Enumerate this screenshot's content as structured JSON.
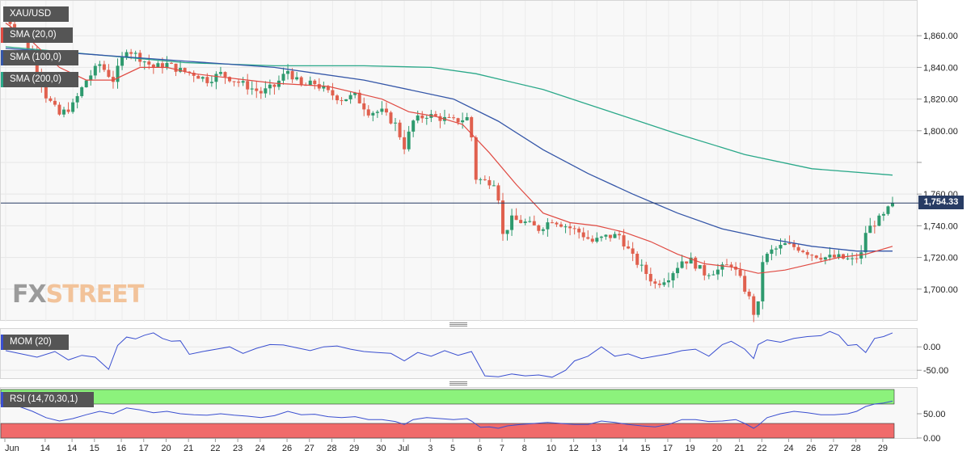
{
  "legends": {
    "symbol": "XAU/USD",
    "sma20": "SMA (20,0)",
    "sma100": "SMA (100,0)",
    "sma200": "SMA (200,0)",
    "mom": "MOM (20)",
    "rsi": "RSI (14,70,30,1)"
  },
  "brand": {
    "fx": "FX",
    "street": "STREET"
  },
  "last_price_label": "1,754.33",
  "colors": {
    "up": "#2e9a6e",
    "down": "#e0604e",
    "sma20": "#e04a42",
    "sma100": "#3456a8",
    "sma200": "#2aa889",
    "mom": "#3a4fd0",
    "rsi": "#3a4fd0",
    "overbought": "#8cf27c",
    "oversold": "#f06a6a"
  },
  "chart_data": [
    {
      "id": "price",
      "type": "candlestick",
      "title": "XAU/USD",
      "ylim": [
        1681,
        1880
      ],
      "yticks": [
        1700,
        1720,
        1740,
        1760,
        1780,
        1800,
        1820,
        1840,
        1860
      ],
      "ytick_labels": [
        "1,700.00",
        "1,720.00",
        "1,740.00",
        "1,760.00",
        "",
        "1,800.00",
        "1,820.00",
        "1,840.00",
        "1,860.00"
      ],
      "last_price": 1754.33,
      "x_index_range": [
        0,
        220
      ],
      "x_ticks": [
        {
          "i": 0,
          "label": "Jun"
        },
        {
          "i": 9,
          "label": "14"
        },
        {
          "i": 15,
          "label": "14"
        },
        {
          "i": 20,
          "label": "15"
        },
        {
          "i": 26,
          "label": "16"
        },
        {
          "i": 31,
          "label": "17"
        },
        {
          "i": 36,
          "label": "20"
        },
        {
          "i": 41,
          "label": "21"
        },
        {
          "i": 47,
          "label": "22"
        },
        {
          "i": 52,
          "label": "23"
        },
        {
          "i": 57,
          "label": "24"
        },
        {
          "i": 63,
          "label": "26"
        },
        {
          "i": 68,
          "label": "27"
        },
        {
          "i": 73,
          "label": "28"
        },
        {
          "i": 78,
          "label": "29"
        },
        {
          "i": 84,
          "label": "30"
        },
        {
          "i": 89,
          "label": "Jul"
        },
        {
          "i": 95,
          "label": "3"
        },
        {
          "i": 100,
          "label": "5"
        },
        {
          "i": 106,
          "label": "6"
        },
        {
          "i": 111,
          "label": "7"
        },
        {
          "i": 116,
          "label": "8"
        },
        {
          "i": 122,
          "label": "10"
        },
        {
          "i": 127,
          "label": "12"
        },
        {
          "i": 132,
          "label": "13"
        },
        {
          "i": 138,
          "label": "14"
        },
        {
          "i": 143,
          "label": "15"
        },
        {
          "i": 148,
          "label": "17"
        },
        {
          "i": 153,
          "label": "19"
        },
        {
          "i": 159,
          "label": "20"
        },
        {
          "i": 164,
          "label": "21"
        },
        {
          "i": 169,
          "label": "22"
        },
        {
          "i": 175,
          "label": "24"
        },
        {
          "i": 180,
          "label": "26"
        },
        {
          "i": 185,
          "label": "27"
        },
        {
          "i": 190,
          "label": "28"
        },
        {
          "i": 196,
          "label": "29"
        }
      ],
      "close_path": [
        [
          0,
          1872
        ],
        [
          3,
          1862
        ],
        [
          6,
          1848
        ],
        [
          9,
          1822
        ],
        [
          12,
          1810
        ],
        [
          15,
          1816
        ],
        [
          18,
          1832
        ],
        [
          21,
          1842
        ],
        [
          24,
          1832
        ],
        [
          27,
          1852
        ],
        [
          30,
          1846
        ],
        [
          33,
          1840
        ],
        [
          36,
          1842
        ],
        [
          39,
          1838
        ],
        [
          42,
          1836
        ],
        [
          45,
          1832
        ],
        [
          48,
          1836
        ],
        [
          51,
          1832
        ],
        [
          54,
          1828
        ],
        [
          57,
          1824
        ],
        [
          60,
          1828
        ],
        [
          63,
          1838
        ],
        [
          66,
          1828
        ],
        [
          69,
          1830
        ],
        [
          72,
          1824
        ],
        [
          75,
          1820
        ],
        [
          78,
          1822
        ],
        [
          81,
          1812
        ],
        [
          84,
          1812
        ],
        [
          87,
          1804
        ],
        [
          89,
          1790
        ],
        [
          91,
          1806
        ],
        [
          94,
          1810
        ],
        [
          97,
          1808
        ],
        [
          100,
          1806
        ],
        [
          103,
          1808
        ],
        [
          104,
          1796
        ],
        [
          105,
          1770
        ],
        [
          107,
          1768
        ],
        [
          109,
          1768
        ],
        [
          110,
          1758
        ],
        [
          111,
          1734
        ],
        [
          113,
          1744
        ],
        [
          116,
          1742
        ],
        [
          119,
          1738
        ],
        [
          122,
          1744
        ],
        [
          125,
          1740
        ],
        [
          128,
          1736
        ],
        [
          131,
          1730
        ],
        [
          134,
          1733
        ],
        [
          137,
          1734
        ],
        [
          140,
          1720
        ],
        [
          143,
          1710
        ],
        [
          145,
          1703
        ],
        [
          148,
          1708
        ],
        [
          151,
          1718
        ],
        [
          153,
          1718
        ],
        [
          156,
          1710
        ],
        [
          159,
          1712
        ],
        [
          162,
          1716
        ],
        [
          164,
          1706
        ],
        [
          166,
          1694
        ],
        [
          167,
          1685
        ],
        [
          168,
          1690
        ],
        [
          169,
          1718
        ],
        [
          171,
          1724
        ],
        [
          174,
          1728
        ],
        [
          177,
          1726
        ],
        [
          180,
          1722
        ],
        [
          183,
          1720
        ],
        [
          186,
          1720
        ],
        [
          189,
          1718
        ],
        [
          191,
          1722
        ],
        [
          192,
          1736
        ],
        [
          194,
          1742
        ],
        [
          196,
          1746
        ],
        [
          198,
          1754.33
        ]
      ],
      "sma20_path": [
        [
          0,
          1868
        ],
        [
          6,
          1856
        ],
        [
          12,
          1840
        ],
        [
          18,
          1832
        ],
        [
          24,
          1832
        ],
        [
          30,
          1840
        ],
        [
          36,
          1840
        ],
        [
          42,
          1836
        ],
        [
          48,
          1834
        ],
        [
          54,
          1832
        ],
        [
          60,
          1830
        ],
        [
          66,
          1829
        ],
        [
          72,
          1828
        ],
        [
          78,
          1824
        ],
        [
          84,
          1820
        ],
        [
          90,
          1812
        ],
        [
          96,
          1809
        ],
        [
          102,
          1804
        ],
        [
          108,
          1786
        ],
        [
          114,
          1766
        ],
        [
          120,
          1748
        ],
        [
          126,
          1742
        ],
        [
          132,
          1740
        ],
        [
          138,
          1736
        ],
        [
          144,
          1730
        ],
        [
          150,
          1722
        ],
        [
          156,
          1716
        ],
        [
          162,
          1714
        ],
        [
          168,
          1710
        ],
        [
          174,
          1712
        ],
        [
          180,
          1716
        ],
        [
          186,
          1720
        ],
        [
          192,
          1722
        ],
        [
          198,
          1727
        ]
      ],
      "sma100_path": [
        [
          0,
          1852
        ],
        [
          20,
          1848
        ],
        [
          40,
          1844
        ],
        [
          60,
          1840
        ],
        [
          80,
          1832
        ],
        [
          100,
          1820
        ],
        [
          110,
          1806
        ],
        [
          120,
          1788
        ],
        [
          130,
          1773
        ],
        [
          140,
          1760
        ],
        [
          150,
          1748
        ],
        [
          160,
          1738
        ],
        [
          170,
          1732
        ],
        [
          180,
          1727
        ],
        [
          190,
          1724
        ],
        [
          198,
          1724
        ]
      ],
      "sma200_path": [
        [
          0,
          1853
        ],
        [
          20,
          1848
        ],
        [
          40,
          1843
        ],
        [
          60,
          1841
        ],
        [
          80,
          1841
        ],
        [
          95,
          1840
        ],
        [
          105,
          1836
        ],
        [
          120,
          1826
        ],
        [
          135,
          1812
        ],
        [
          150,
          1798
        ],
        [
          165,
          1785
        ],
        [
          180,
          1776
        ],
        [
          198,
          1772
        ]
      ]
    },
    {
      "id": "mom",
      "type": "line",
      "title": "MOM (20)",
      "ylim": [
        -67,
        35
      ],
      "yticks": [
        0,
        -50
      ],
      "ytick_labels": [
        "0.00",
        "-50.00"
      ],
      "path": [
        [
          0,
          -8
        ],
        [
          4,
          -16
        ],
        [
          7,
          -22
        ],
        [
          11,
          -10
        ],
        [
          14,
          -28
        ],
        [
          17,
          -18
        ],
        [
          20,
          -22
        ],
        [
          23,
          -48
        ],
        [
          25,
          3
        ],
        [
          27,
          21
        ],
        [
          29,
          17
        ],
        [
          31,
          25
        ],
        [
          33,
          30
        ],
        [
          35,
          18
        ],
        [
          37,
          12
        ],
        [
          39,
          13
        ],
        [
          41,
          -16
        ],
        [
          44,
          -10
        ],
        [
          47,
          -5
        ],
        [
          50,
          0
        ],
        [
          53,
          -14
        ],
        [
          56,
          -3
        ],
        [
          59,
          5
        ],
        [
          62,
          4
        ],
        [
          65,
          -2
        ],
        [
          68,
          -8
        ],
        [
          71,
          0
        ],
        [
          74,
          2
        ],
        [
          77,
          -5
        ],
        [
          80,
          -10
        ],
        [
          83,
          -12
        ],
        [
          86,
          -14
        ],
        [
          89,
          -30
        ],
        [
          92,
          -12
        ],
        [
          95,
          -20
        ],
        [
          98,
          -8
        ],
        [
          101,
          -18
        ],
        [
          104,
          -10
        ],
        [
          107,
          -62
        ],
        [
          110,
          -64
        ],
        [
          113,
          -58
        ],
        [
          116,
          -62
        ],
        [
          119,
          -60
        ],
        [
          122,
          -65
        ],
        [
          125,
          -50
        ],
        [
          127,
          -30
        ],
        [
          130,
          -20
        ],
        [
          133,
          0
        ],
        [
          136,
          -20
        ],
        [
          139,
          -15
        ],
        [
          142,
          -25
        ],
        [
          145,
          -20
        ],
        [
          148,
          -15
        ],
        [
          151,
          -8
        ],
        [
          154,
          -5
        ],
        [
          157,
          -20
        ],
        [
          160,
          5
        ],
        [
          162,
          12
        ],
        [
          165,
          -5
        ],
        [
          167,
          -25
        ],
        [
          168,
          5
        ],
        [
          170,
          15
        ],
        [
          173,
          10
        ],
        [
          176,
          18
        ],
        [
          179,
          22
        ],
        [
          182,
          24
        ],
        [
          184,
          33
        ],
        [
          186,
          25
        ],
        [
          188,
          3
        ],
        [
          190,
          5
        ],
        [
          192,
          -12
        ],
        [
          194,
          18
        ],
        [
          196,
          22
        ],
        [
          198,
          30
        ]
      ]
    },
    {
      "id": "rsi",
      "type": "line",
      "title": "RSI (14,70,30,1)",
      "ylim": [
        0,
        100
      ],
      "yticks": [
        50,
        0
      ],
      "ytick_labels": [
        "50.00",
        "0.00"
      ],
      "overbought": 70,
      "oversold": 30,
      "path": [
        [
          0,
          85
        ],
        [
          3,
          65
        ],
        [
          6,
          55
        ],
        [
          9,
          42
        ],
        [
          12,
          35
        ],
        [
          15,
          40
        ],
        [
          18,
          48
        ],
        [
          21,
          55
        ],
        [
          24,
          50
        ],
        [
          27,
          62
        ],
        [
          30,
          58
        ],
        [
          33,
          52
        ],
        [
          36,
          55
        ],
        [
          39,
          50
        ],
        [
          42,
          48
        ],
        [
          45,
          47
        ],
        [
          48,
          50
        ],
        [
          51,
          47
        ],
        [
          54,
          45
        ],
        [
          57,
          42
        ],
        [
          60,
          46
        ],
        [
          63,
          55
        ],
        [
          66,
          48
        ],
        [
          69,
          49
        ],
        [
          72,
          44
        ],
        [
          75,
          42
        ],
        [
          78,
          44
        ],
        [
          81,
          38
        ],
        [
          84,
          38
        ],
        [
          87,
          34
        ],
        [
          89,
          28
        ],
        [
          91,
          38
        ],
        [
          94,
          42
        ],
        [
          97,
          40
        ],
        [
          100,
          38
        ],
        [
          103,
          40
        ],
        [
          104,
          35
        ],
        [
          106,
          22
        ],
        [
          108,
          23
        ],
        [
          110,
          20
        ],
        [
          112,
          25
        ],
        [
          115,
          28
        ],
        [
          118,
          30
        ],
        [
          121,
          32
        ],
        [
          124,
          30
        ],
        [
          127,
          28
        ],
        [
          130,
          28
        ],
        [
          133,
          35
        ],
        [
          136,
          32
        ],
        [
          139,
          28
        ],
        [
          142,
          25
        ],
        [
          145,
          23
        ],
        [
          148,
          28
        ],
        [
          151,
          38
        ],
        [
          154,
          38
        ],
        [
          157,
          34
        ],
        [
          160,
          35
        ],
        [
          163,
          38
        ],
        [
          165,
          30
        ],
        [
          167,
          20
        ],
        [
          168,
          26
        ],
        [
          170,
          42
        ],
        [
          173,
          50
        ],
        [
          176,
          55
        ],
        [
          179,
          52
        ],
        [
          182,
          48
        ],
        [
          185,
          48
        ],
        [
          188,
          50
        ],
        [
          190,
          55
        ],
        [
          192,
          65
        ],
        [
          194,
          70
        ],
        [
          196,
          72
        ],
        [
          198,
          76
        ]
      ]
    }
  ]
}
